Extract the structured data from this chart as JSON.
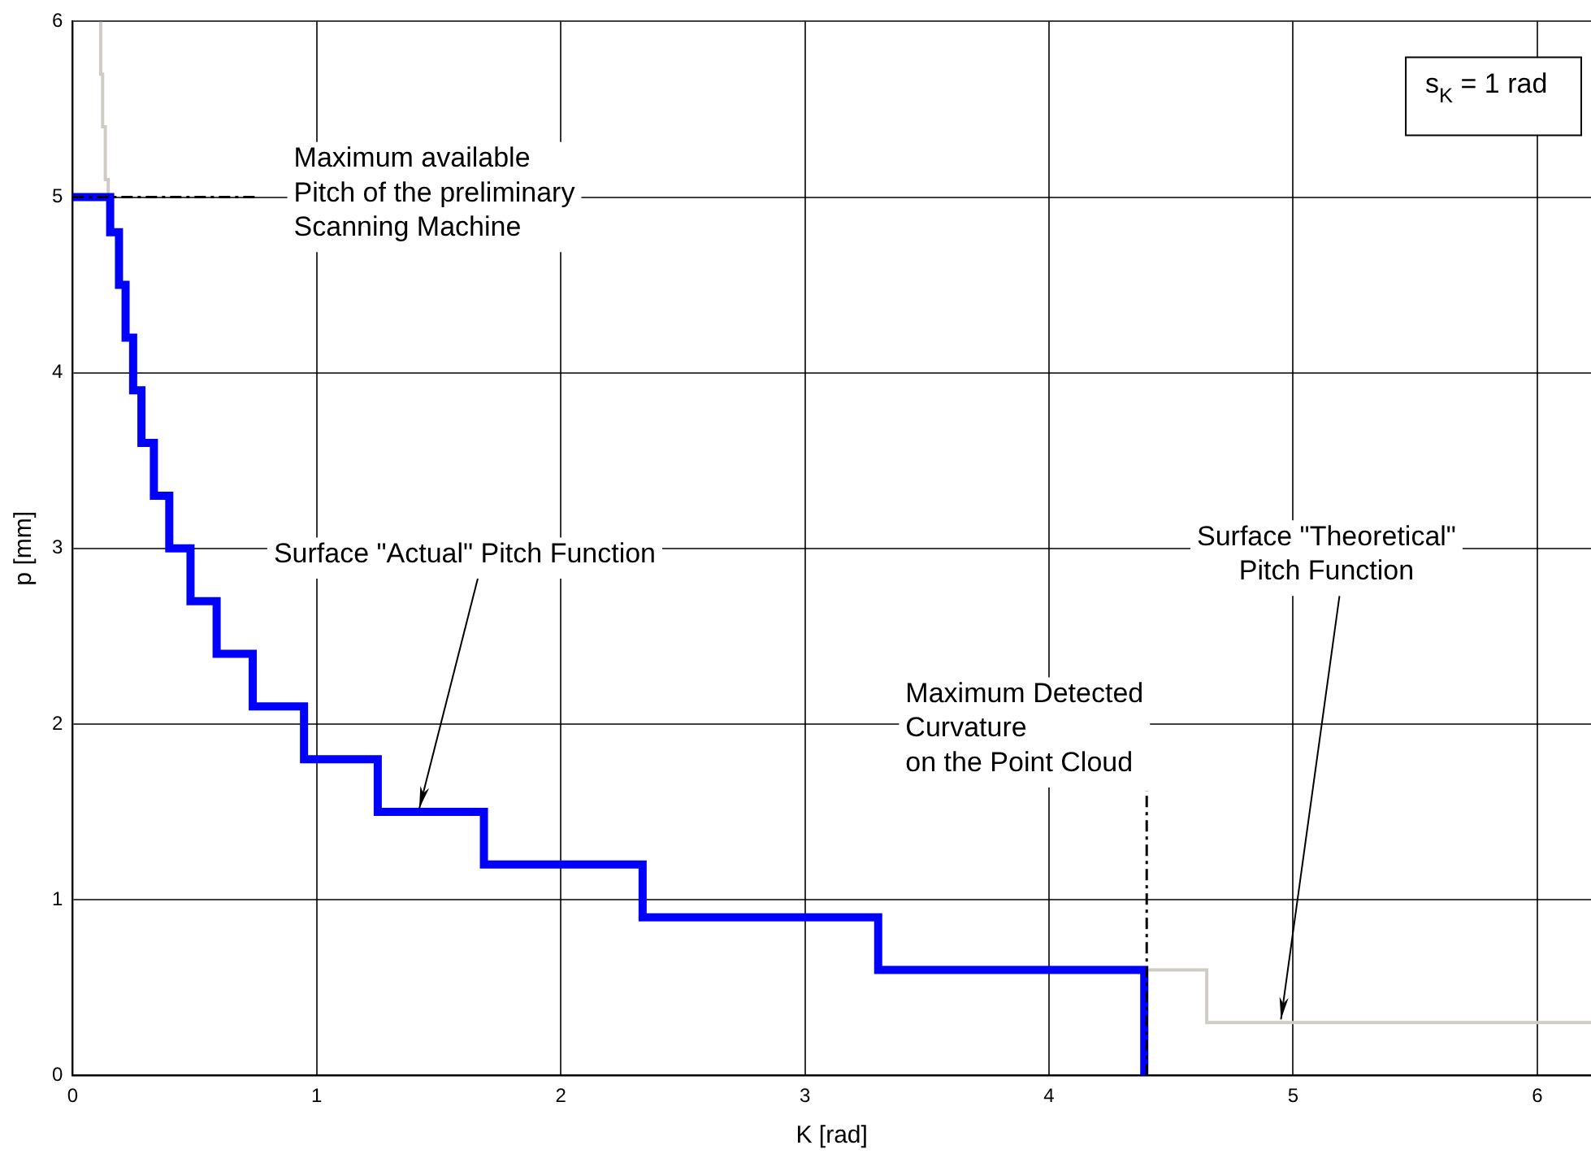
{
  "chart_data": {
    "type": "step",
    "xlabel": "K [rad]",
    "ylabel": "p [mm]",
    "xlim": [
      0,
      6.22
    ],
    "ylim": [
      0,
      6
    ],
    "xticks": [
      0,
      1,
      2,
      3,
      4,
      5,
      6
    ],
    "yticks": [
      0,
      1,
      2,
      3,
      4,
      5,
      6
    ],
    "grid": true,
    "legend": false,
    "marker": "none",
    "series": [
      {
        "color": "#cfccc6",
        "x": [
          0.115,
          0.115,
          0.123,
          0.134,
          0.146,
          1,
          4.39,
          4.646,
          6.22
        ],
        "values": [
          6,
          5.7,
          5.4,
          5.1,
          5,
          null,
          0.6,
          0.3,
          0.3
        ]
      },
      {
        "color": "#0000ff",
        "x": [
          0,
          0.154,
          0.19,
          0.217,
          0.248,
          0.282,
          0.333,
          0.396,
          0.483,
          0.59,
          0.738,
          0.948,
          1.25,
          1.685,
          2.335,
          3.3,
          4.39
        ],
        "values": [
          5,
          4.8,
          4.5,
          4.2,
          3.9,
          3.6,
          3.3,
          3,
          2.7,
          2.4,
          2.1,
          1.8,
          1.5,
          1.2,
          0.9,
          0.6,
          0
        ]
      }
    ],
    "ref_lines": [
      {
        "axis": "y",
        "value": 5,
        "label": "Maximum available\nPitch of the preliminary\nScanning Machine",
        "color": "#000000",
        "line_style": "dashdot"
      },
      {
        "axis": "x",
        "value": 4.4,
        "label": "Maximum Detected\nCurvature\non the Point Cloud",
        "color": "#000000",
        "line_style": "dashdot"
      }
    ],
    "annotations": [
      {
        "text": "Surface \"Actual\" Pitch Function",
        "x": 1.42,
        "y": 1.5
      },
      {
        "text": "Surface \"Theoretical\"\nPitch Function",
        "x": 4.95,
        "y": 0.3
      },
      "s$_{K}$ = 1 rad"
    ]
  }
}
